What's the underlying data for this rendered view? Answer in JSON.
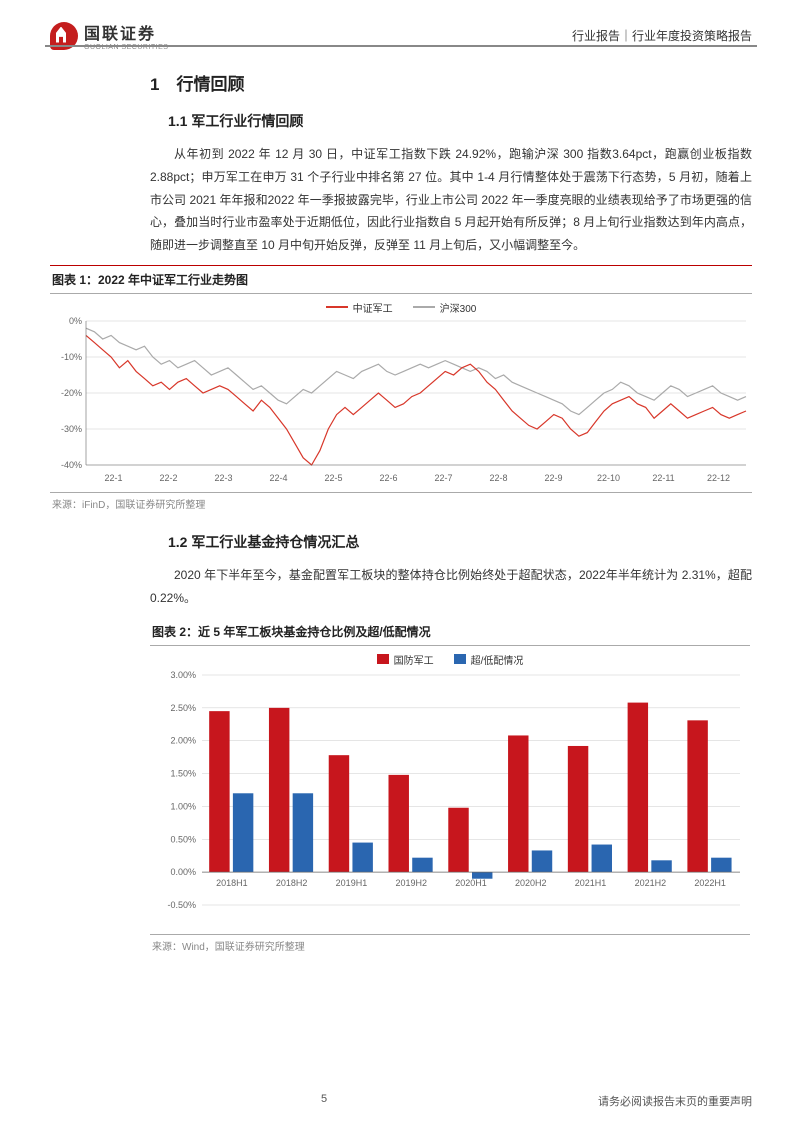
{
  "header": {
    "logo_cn": "国联证券",
    "logo_en": "GUOLIAN SECURITIES",
    "right_label": "行业报告｜行业年度投资策略报告"
  },
  "section1": {
    "num_title": "1　行情回顾",
    "sub1": {
      "title": "1.1 军工行业行情回顾",
      "para": "从年初到 2022 年 12 月 30 日，中证军工指数下跌 24.92%，跑输沪深 300 指数3.64pct，跑赢创业板指数 2.88pct；申万军工在申万 31 个子行业中排名第 27 位。其中 1-4 月行情整体处于震荡下行态势，5 月初，随着上市公司 2021 年年报和2022 年一季报披露完毕，行业上市公司 2022 年一季度亮眼的业绩表现给予了市场更强的信心，叠加当时行业市盈率处于近期低位，因此行业指数自 5 月起开始有所反弹；8 月上旬行业指数达到年内高点，随即进一步调整直至 10 月中旬开始反弹，反弹至 11 月上旬后，又小幅调整至今。"
    },
    "sub2": {
      "title": "1.2 军工行业基金持仓情况汇总",
      "para": "2020 年下半年至今，基金配置军工板块的整体持仓比例始终处于超配状态，2022年半年统计为 2.31%，超配 0.22%。"
    }
  },
  "figure1": {
    "title": "图表 1：2022 年中证军工行业走势图",
    "source": "来源：iFinD，国联证券研究所整理",
    "legend": [
      {
        "label": "中证军工",
        "color": "#d8372a"
      },
      {
        "label": "沪深300",
        "color": "#aaaaaa"
      }
    ],
    "ylim": [
      -40,
      0
    ],
    "yticks": [
      0,
      -10,
      -20,
      -30,
      -40
    ],
    "xticks": [
      "22-1",
      "22-2",
      "22-3",
      "22-4",
      "22-5",
      "22-6",
      "22-7",
      "22-8",
      "22-9",
      "22-10",
      "22-11",
      "22-12"
    ],
    "grid_color": "#cccccc",
    "background_color": "#ffffff",
    "axis_fontsize": 9,
    "series": {
      "zzjg": {
        "color": "#d8372a",
        "width": 1.2,
        "y": [
          -4,
          -6,
          -8,
          -10,
          -13,
          -11,
          -14,
          -16,
          -18,
          -17,
          -19,
          -17,
          -16,
          -18,
          -20,
          -19,
          -18,
          -19,
          -21,
          -23,
          -25,
          -22,
          -24,
          -27,
          -30,
          -34,
          -38,
          -40,
          -36,
          -30,
          -26,
          -24,
          -26,
          -24,
          -22,
          -20,
          -22,
          -24,
          -23,
          -21,
          -20,
          -18,
          -16,
          -14,
          -15,
          -13,
          -12,
          -14,
          -17,
          -19,
          -22,
          -25,
          -27,
          -29,
          -30,
          -28,
          -26,
          -27,
          -30,
          -32,
          -31,
          -28,
          -25,
          -23,
          -22,
          -21,
          -23,
          -24,
          -27,
          -25,
          -23,
          -25,
          -27,
          -26,
          -25,
          -24,
          -26,
          -27,
          -26,
          -25
        ]
      },
      "hs300": {
        "color": "#aaaaaa",
        "width": 1.2,
        "y": [
          -2,
          -3,
          -5,
          -4,
          -6,
          -7,
          -8,
          -7,
          -10,
          -12,
          -11,
          -13,
          -12,
          -11,
          -13,
          -15,
          -14,
          -13,
          -15,
          -17,
          -19,
          -18,
          -20,
          -22,
          -23,
          -21,
          -19,
          -20,
          -18,
          -16,
          -14,
          -15,
          -16,
          -14,
          -13,
          -12,
          -14,
          -15,
          -14,
          -13,
          -12,
          -13,
          -12,
          -11,
          -12,
          -13,
          -14,
          -13,
          -14,
          -16,
          -15,
          -17,
          -18,
          -19,
          -20,
          -21,
          -22,
          -23,
          -25,
          -26,
          -24,
          -22,
          -20,
          -19,
          -17,
          -18,
          -20,
          -21,
          -22,
          -20,
          -18,
          -19,
          -21,
          -20,
          -19,
          -18,
          -20,
          -21,
          -22,
          -21
        ]
      }
    }
  },
  "figure2": {
    "title": "图表 2：近 5 年军工板块基金持仓比例及超/低配情况",
    "source": "来源：Wind，国联证券研究所整理",
    "legend": [
      {
        "label": "国防军工",
        "color": "#c7161d"
      },
      {
        "label": "超/低配情况",
        "color": "#2a66b0"
      }
    ],
    "categories": [
      "2018H1",
      "2018H2",
      "2019H1",
      "2019H2",
      "2020H1",
      "2020H2",
      "2021H1",
      "2021H2",
      "2022H1"
    ],
    "series1": {
      "color": "#c7161d",
      "values": [
        2.45,
        2.5,
        1.78,
        1.48,
        0.98,
        2.08,
        1.92,
        2.58,
        2.31
      ]
    },
    "series2": {
      "color": "#2a66b0",
      "values": [
        1.2,
        1.2,
        0.45,
        0.22,
        -0.1,
        0.33,
        0.42,
        0.18,
        0.22
      ]
    },
    "ylim": [
      -0.5,
      3.0
    ],
    "yticks": [
      "3.00%",
      "2.50%",
      "2.00%",
      "1.50%",
      "1.00%",
      "0.50%",
      "0.00%",
      "-0.50%"
    ],
    "ytick_vals": [
      3.0,
      2.5,
      2.0,
      1.5,
      1.0,
      0.5,
      0.0,
      -0.5
    ],
    "grid_color": "#cccccc",
    "background_color": "#ffffff",
    "axis_fontsize": 9,
    "bar_width": 0.38
  },
  "footer": {
    "page": "5",
    "note": "请务必阅读报告末页的重要声明"
  }
}
